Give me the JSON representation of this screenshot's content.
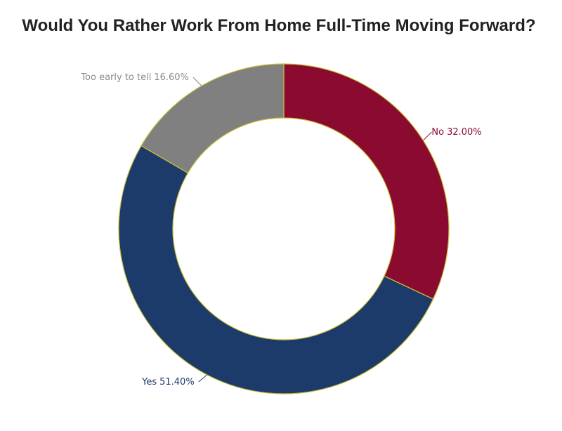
{
  "chart_data": {
    "type": "pie",
    "title": "Would You Rather Work From Home Full-Time Moving Forward?",
    "categories": [
      "No",
      "Yes",
      "Too early to tell"
    ],
    "values": [
      32.0,
      51.4,
      16.6
    ],
    "value_labels": [
      "32.00%",
      "51.40%",
      "16.60%"
    ],
    "colors": [
      "#8b0a30",
      "#1c3a6a",
      "#808080"
    ]
  }
}
